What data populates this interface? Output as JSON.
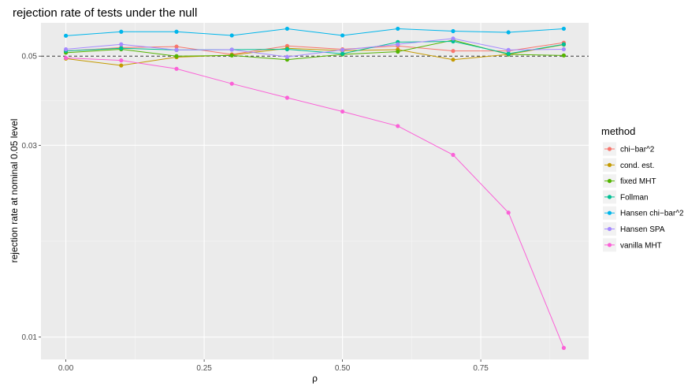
{
  "chart_data": {
    "type": "line",
    "title": "rejection rate of tests under the null",
    "xlabel": "ρ",
    "ylabel": "rejection rate at nominal 0.05 level",
    "x": [
      0,
      0.1,
      0.2,
      0.3,
      0.4,
      0.5,
      0.6,
      0.7,
      0.8,
      0.9
    ],
    "x_ticks": [
      0,
      0.25,
      0.5,
      0.75
    ],
    "x_tick_labels": [
      "0.00",
      "0.25",
      "0.50",
      "0.75"
    ],
    "xlim": [
      -0.045,
      0.945
    ],
    "y_scale": "log",
    "y_ticks": [
      0.01,
      0.03,
      0.05
    ],
    "y_tick_labels": [
      "0.01",
      "0.03",
      "0.05"
    ],
    "ylim": [
      0.0088,
      0.0605
    ],
    "reference_line": {
      "y": 0.05,
      "style": "dashed"
    },
    "grid": true,
    "legend_title": "method",
    "legend_position": "right",
    "series": [
      {
        "name": "chi−bar^2",
        "color": "#F8766D",
        "values": [
          0.0515,
          0.0525,
          0.0528,
          0.0505,
          0.053,
          0.052,
          0.053,
          0.0515,
          0.0515,
          0.054
        ]
      },
      {
        "name": "cond. est.",
        "color": "#C49A00",
        "values": [
          0.0493,
          0.0474,
          0.0497,
          0.0503,
          0.0523,
          0.0516,
          0.0519,
          0.049,
          0.0505,
          0.0534
        ]
      },
      {
        "name": "fixed MHT",
        "color": "#53B400",
        "values": [
          0.051,
          0.052,
          0.05,
          0.0502,
          0.049,
          0.0505,
          0.0513,
          0.0548,
          0.0505,
          0.0502
        ]
      },
      {
        "name": "Follman",
        "color": "#00C094",
        "values": [
          0.0515,
          0.0523,
          0.0518,
          0.0519,
          0.052,
          0.0507,
          0.0542,
          0.0544,
          0.0507,
          0.0535
        ]
      },
      {
        "name": "Hansen chi−bar^2",
        "color": "#00B6EB",
        "values": [
          0.0562,
          0.0575,
          0.0575,
          0.0563,
          0.0585,
          0.0563,
          0.0585,
          0.0577,
          0.0573,
          0.0585
        ]
      },
      {
        "name": "Hansen SPA",
        "color": "#A58AFF",
        "values": [
          0.052,
          0.0535,
          0.0518,
          0.0519,
          0.0498,
          0.0518,
          0.0535,
          0.0553,
          0.0518,
          0.052
        ]
      },
      {
        "name": "vanilla MHT",
        "color": "#FB61D7",
        "values": [
          0.0495,
          0.0488,
          0.0465,
          0.0427,
          0.0394,
          0.0364,
          0.0335,
          0.0284,
          0.0204,
          0.0094
        ]
      }
    ]
  }
}
